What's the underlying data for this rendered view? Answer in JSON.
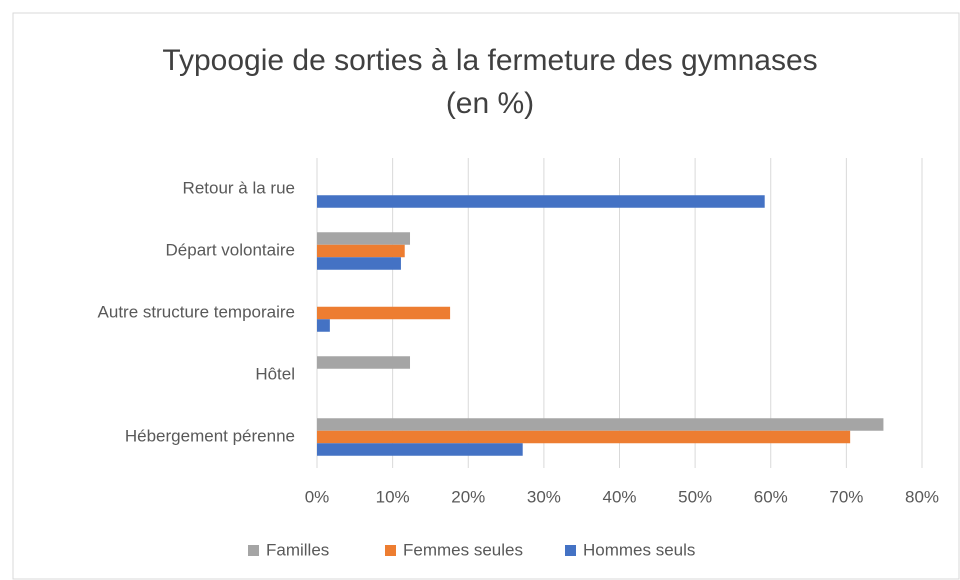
{
  "chart_data": {
    "type": "hbar",
    "title": [
      "Typoogie de sorties à la fermeture des gymnases",
      "(en %)"
    ],
    "categories": [
      "Retour à la rue",
      "Départ volontaire",
      "Autre structure temporaire",
      "Hôtel",
      "Hébergement pérenne"
    ],
    "series": [
      {
        "name": "Familles",
        "color": "#a5a5a5",
        "values": [
          0,
          12.3,
          0,
          12.3,
          74.9
        ]
      },
      {
        "name": "Femmes seules",
        "color": "#ed7d31",
        "values": [
          0,
          11.6,
          17.6,
          0,
          70.5
        ]
      },
      {
        "name": "Hommes seuls",
        "color": "#4472c4",
        "values": [
          59.2,
          11.1,
          1.7,
          0,
          27.2
        ]
      }
    ],
    "xlim": [
      0,
      80
    ],
    "xticks": [
      {
        "value": 0,
        "label": "0%"
      },
      {
        "value": 10,
        "label": "10%"
      },
      {
        "value": 20,
        "label": "20%"
      },
      {
        "value": 30,
        "label": "30%"
      },
      {
        "value": 40,
        "label": "40%"
      },
      {
        "value": 50,
        "label": "50%"
      },
      {
        "value": 60,
        "label": "60%"
      },
      {
        "value": 70,
        "label": "70%"
      },
      {
        "value": 80,
        "label": "80%"
      }
    ],
    "grid": true,
    "legend": "bottom"
  }
}
